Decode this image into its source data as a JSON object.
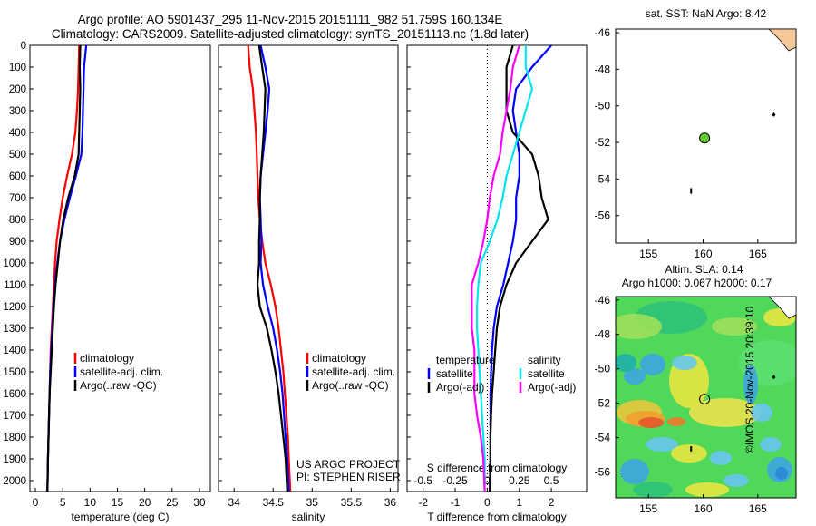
{
  "titles": {
    "line1": "Argo profile: AO 5901437_295 11-Nov-2015 20151111_982 51.759S 160.134E",
    "line2": "Climatology: CARS2009. Satellite-adjusted climatology: synTS_20151113.nc (1.8d later)"
  },
  "credit": "©IMOS 20-Nov-2015 20:39:10",
  "colors": {
    "climatology": "#ff0000",
    "satellite": "#0000ff",
    "argo": "#000000",
    "satellite_salinity": "#00e5ee",
    "argo_salinity": "#ff00ff",
    "float_marker": "#66cc33"
  },
  "chart_data": [
    {
      "id": "temperature",
      "type": "line",
      "xlabel": "temperature (deg C)",
      "ylabel": "",
      "xlim": [
        -1,
        32
      ],
      "ylim": [
        2050,
        0
      ],
      "xticks": [
        "0",
        "5",
        "10",
        "15",
        "20",
        "25",
        "30"
      ],
      "xtick_values": [
        0,
        5,
        10,
        15,
        20,
        25,
        30
      ],
      "yticks": [
        "0",
        "100",
        "200",
        "300",
        "400",
        "500",
        "600",
        "700",
        "800",
        "900",
        "1000",
        "1100",
        "1200",
        "1300",
        "1400",
        "1500",
        "1600",
        "1700",
        "1800",
        "1900",
        "2000"
      ],
      "ytick_values": [
        0,
        100,
        200,
        300,
        400,
        500,
        600,
        700,
        800,
        900,
        1000,
        1100,
        1200,
        1300,
        1400,
        1500,
        1600,
        1700,
        1800,
        1900,
        2000
      ],
      "legend": [
        "climatology",
        "satellite-adj. clim.",
        "Argo(..raw -QC)"
      ],
      "series": [
        {
          "name": "climatology",
          "color": "red",
          "depth": [
            0,
            100,
            200,
            300,
            400,
            500,
            600,
            700,
            800,
            900,
            1000,
            1100,
            1200,
            1300,
            1400,
            1500,
            1600,
            1700,
            1800,
            1900,
            2050
          ],
          "values": [
            8.0,
            7.9,
            7.8,
            7.6,
            7.3,
            6.7,
            5.8,
            5.0,
            4.4,
            3.9,
            3.6,
            3.4,
            3.2,
            3.0,
            2.8,
            2.7,
            2.6,
            2.5,
            2.4,
            2.3,
            2.2
          ]
        },
        {
          "name": "satellite-adj. clim.",
          "color": "blue",
          "depth": [
            0,
            100,
            200,
            300,
            400,
            500,
            600,
            700,
            800,
            900,
            1000,
            1100,
            1200,
            1300,
            1400,
            1500,
            1600,
            1700,
            1800,
            1900,
            2050
          ],
          "values": [
            9.3,
            8.9,
            8.8,
            8.7,
            8.6,
            8.4,
            7.4,
            6.3,
            5.3,
            4.5,
            4.0,
            3.6,
            3.3,
            3.1,
            2.9,
            2.7,
            2.6,
            2.5,
            2.4,
            2.3,
            2.2
          ]
        },
        {
          "name": "Argo(..raw -QC)",
          "color": "black",
          "depth": [
            0,
            100,
            200,
            300,
            400,
            500,
            600,
            700,
            800,
            900,
            1000,
            1100,
            1200,
            1300,
            1400,
            1500,
            1600,
            1700,
            1800,
            1900,
            2050
          ],
          "values": [
            8.2,
            8.1,
            8.2,
            8.1,
            8.0,
            7.9,
            7.2,
            6.0,
            5.1,
            4.5,
            4.1,
            3.7,
            3.4,
            3.2,
            3.0,
            2.8,
            2.6,
            2.5,
            2.4,
            2.3,
            2.2
          ]
        }
      ]
    },
    {
      "id": "salinity",
      "type": "line",
      "xlabel": "salinity",
      "ylabel": "",
      "xlim": [
        33.8,
        36.1
      ],
      "ylim": [
        2050,
        0
      ],
      "xticks": [
        "34",
        "34.5",
        "35",
        "35.5",
        "36"
      ],
      "xtick_values": [
        34,
        34.5,
        35,
        35.5,
        36
      ],
      "legend": [
        "climatology",
        "satellite-adj. clim.",
        "Argo(..raw -QC)"
      ],
      "annotation": [
        "US ARGO PROJECT",
        "PI: STEPHEN RISER"
      ],
      "series": [
        {
          "name": "climatology",
          "color": "red",
          "depth": [
            0,
            100,
            200,
            300,
            400,
            500,
            600,
            700,
            800,
            900,
            1000,
            1100,
            1200,
            1300,
            1400,
            1500,
            1600,
            1700,
            1800,
            1900,
            2050
          ],
          "values": [
            34.18,
            34.2,
            34.24,
            34.26,
            34.28,
            34.29,
            34.3,
            34.31,
            34.33,
            34.36,
            34.4,
            34.47,
            34.53,
            34.57,
            34.6,
            34.63,
            34.65,
            34.67,
            34.69,
            34.7,
            34.72
          ]
        },
        {
          "name": "satellite-adj. clim.",
          "color": "blue",
          "depth": [
            0,
            100,
            200,
            300,
            400,
            500,
            600,
            700,
            800,
            900,
            1000,
            1100,
            1200,
            1300,
            1400,
            1500,
            1600,
            1700,
            1800,
            1900,
            2050
          ],
          "values": [
            34.34,
            34.4,
            34.45,
            34.43,
            34.4,
            34.37,
            34.34,
            34.33,
            34.34,
            34.35,
            34.34,
            34.37,
            34.43,
            34.5,
            34.55,
            34.59,
            34.62,
            34.64,
            34.66,
            34.68,
            34.7
          ]
        },
        {
          "name": "Argo(..raw -QC)",
          "color": "black",
          "depth": [
            0,
            100,
            200,
            300,
            400,
            500,
            600,
            700,
            800,
            900,
            1000,
            1100,
            1200,
            1300,
            1400,
            1500,
            1600,
            1700,
            1800,
            1900,
            2050
          ],
          "values": [
            34.32,
            34.36,
            34.4,
            34.39,
            34.38,
            34.36,
            34.34,
            34.33,
            34.33,
            34.32,
            34.32,
            34.3,
            34.33,
            34.42,
            34.48,
            34.53,
            34.57,
            34.6,
            34.63,
            34.66,
            34.68
          ]
        }
      ]
    },
    {
      "id": "difference",
      "type": "line",
      "xlabel": "T difference from climatology",
      "xlabel2": "S difference from climatology",
      "xlim": [
        -2.5,
        3.1
      ],
      "ylim": [
        2050,
        0
      ],
      "xticks": [
        "-2",
        "-1",
        "0",
        "1",
        "2"
      ],
      "xtick_values": [
        -2,
        -1,
        0,
        1,
        2
      ],
      "xticks2": [
        "-0.5",
        "-0.25",
        "0",
        "0.25",
        "0.5"
      ],
      "xtick2_values": [
        -0.5,
        -0.25,
        0,
        0.25,
        0.5
      ],
      "legend_temperature_title": "temperature",
      "legend_salinity_title": "salinity",
      "legend": [
        "satellite",
        "Argo(-adj)",
        "satellite",
        "Argo(-adj)"
      ],
      "series": [
        {
          "name": "satellite",
          "group": "temperature",
          "color": "blue",
          "depth": [
            0,
            100,
            200,
            300,
            400,
            500,
            600,
            700,
            800,
            900,
            1000,
            1100,
            1200,
            1300,
            1400,
            1500,
            1600,
            1700,
            1800,
            1900,
            2050
          ],
          "values": [
            2.0,
            1.4,
            0.9,
            0.8,
            0.9,
            1.0,
            1.0,
            0.9,
            0.9,
            0.8,
            0.65,
            0.5,
            0.3,
            0.2,
            0.15,
            0.12,
            0.1,
            0.1,
            0.1,
            0.1,
            0.08
          ]
        },
        {
          "name": "Argo(-adj)",
          "group": "temperature",
          "color": "black",
          "depth": [
            0,
            100,
            200,
            300,
            400,
            500,
            600,
            700,
            800,
            900,
            1000,
            1100,
            1200,
            1300,
            1400,
            1500,
            1600,
            1700,
            1800,
            1900,
            2050
          ],
          "values": [
            0.8,
            0.6,
            0.6,
            0.6,
            0.8,
            1.4,
            1.6,
            1.7,
            1.9,
            1.4,
            0.9,
            0.6,
            0.4,
            0.3,
            0.25,
            0.2,
            0.15,
            0.12,
            0.1,
            0.1,
            0.08
          ]
        },
        {
          "name": "satellite",
          "group": "salinity",
          "color": "cyan",
          "depth": [
            0,
            100,
            200,
            300,
            400,
            500,
            600,
            700,
            800,
            900,
            1000,
            1100,
            1200,
            1300,
            1400,
            1500,
            1600,
            1700,
            1800,
            1900,
            2050
          ],
          "values": [
            0.3,
            0.3,
            0.35,
            0.3,
            0.25,
            0.2,
            0.15,
            0.12,
            0.08,
            0.02,
            -0.05,
            -0.07,
            -0.08,
            -0.08,
            -0.07,
            -0.06,
            -0.05,
            -0.04,
            -0.03,
            -0.02,
            -0.02
          ]
        },
        {
          "name": "Argo(-adj)",
          "group": "salinity",
          "color": "magenta",
          "depth": [
            0,
            100,
            200,
            300,
            400,
            500,
            600,
            700,
            800,
            900,
            1000,
            1100,
            1200,
            1300,
            1400,
            1500,
            1600,
            1700,
            1800,
            1900,
            2050
          ],
          "values": [
            0.25,
            0.2,
            0.18,
            0.15,
            0.12,
            0.1,
            0.05,
            0.02,
            0.0,
            -0.03,
            -0.07,
            -0.12,
            -0.12,
            -0.12,
            -0.1,
            -0.1,
            -0.1,
            -0.08,
            -0.05,
            -0.03,
            -0.02
          ]
        }
      ]
    },
    {
      "id": "sst-map",
      "type": "scatter",
      "title": "sat. SST: NaN Argo: 8.42",
      "xlim": [
        152,
        168.5
      ],
      "ylim": [
        -57.5,
        -45.8
      ],
      "xticks": [
        "155",
        "160",
        "165"
      ],
      "xtick_values": [
        155,
        160,
        165
      ],
      "yticks": [
        "-46",
        "-48",
        "-50",
        "-52",
        "-54",
        "-56"
      ],
      "ytick_values": [
        -46,
        -48,
        -50,
        -52,
        -54,
        -56
      ],
      "float_position": {
        "lon": 160.134,
        "lat": -51.759
      }
    },
    {
      "id": "sla-map",
      "type": "heatmap",
      "title": "Altim. SLA: 0.14",
      "subtitle": "Argo h1000: 0.067 h2000: 0.17",
      "xlim": [
        152,
        168.5
      ],
      "ylim": [
        -57.5,
        -45.8
      ],
      "xticks": [
        "155",
        "160",
        "165"
      ],
      "xtick_values": [
        155,
        160,
        165
      ],
      "yticks": [
        "-46",
        "-48",
        "-50",
        "-52",
        "-54",
        "-56"
      ],
      "ytick_values": [
        -46,
        -48,
        -50,
        -52,
        -54,
        -56
      ],
      "float_position": {
        "lon": 160.134,
        "lat": -51.759
      }
    }
  ]
}
